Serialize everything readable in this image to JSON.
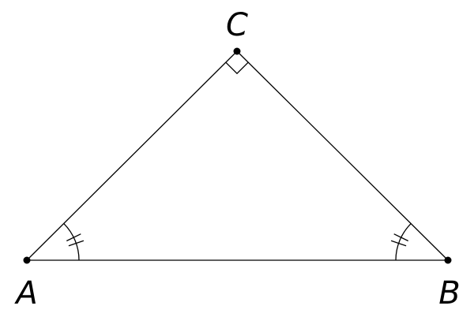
{
  "vertices": [
    {
      "label": "A"
    },
    {
      "label": "B"
    },
    {
      "label": "C"
    }
  ]
}
